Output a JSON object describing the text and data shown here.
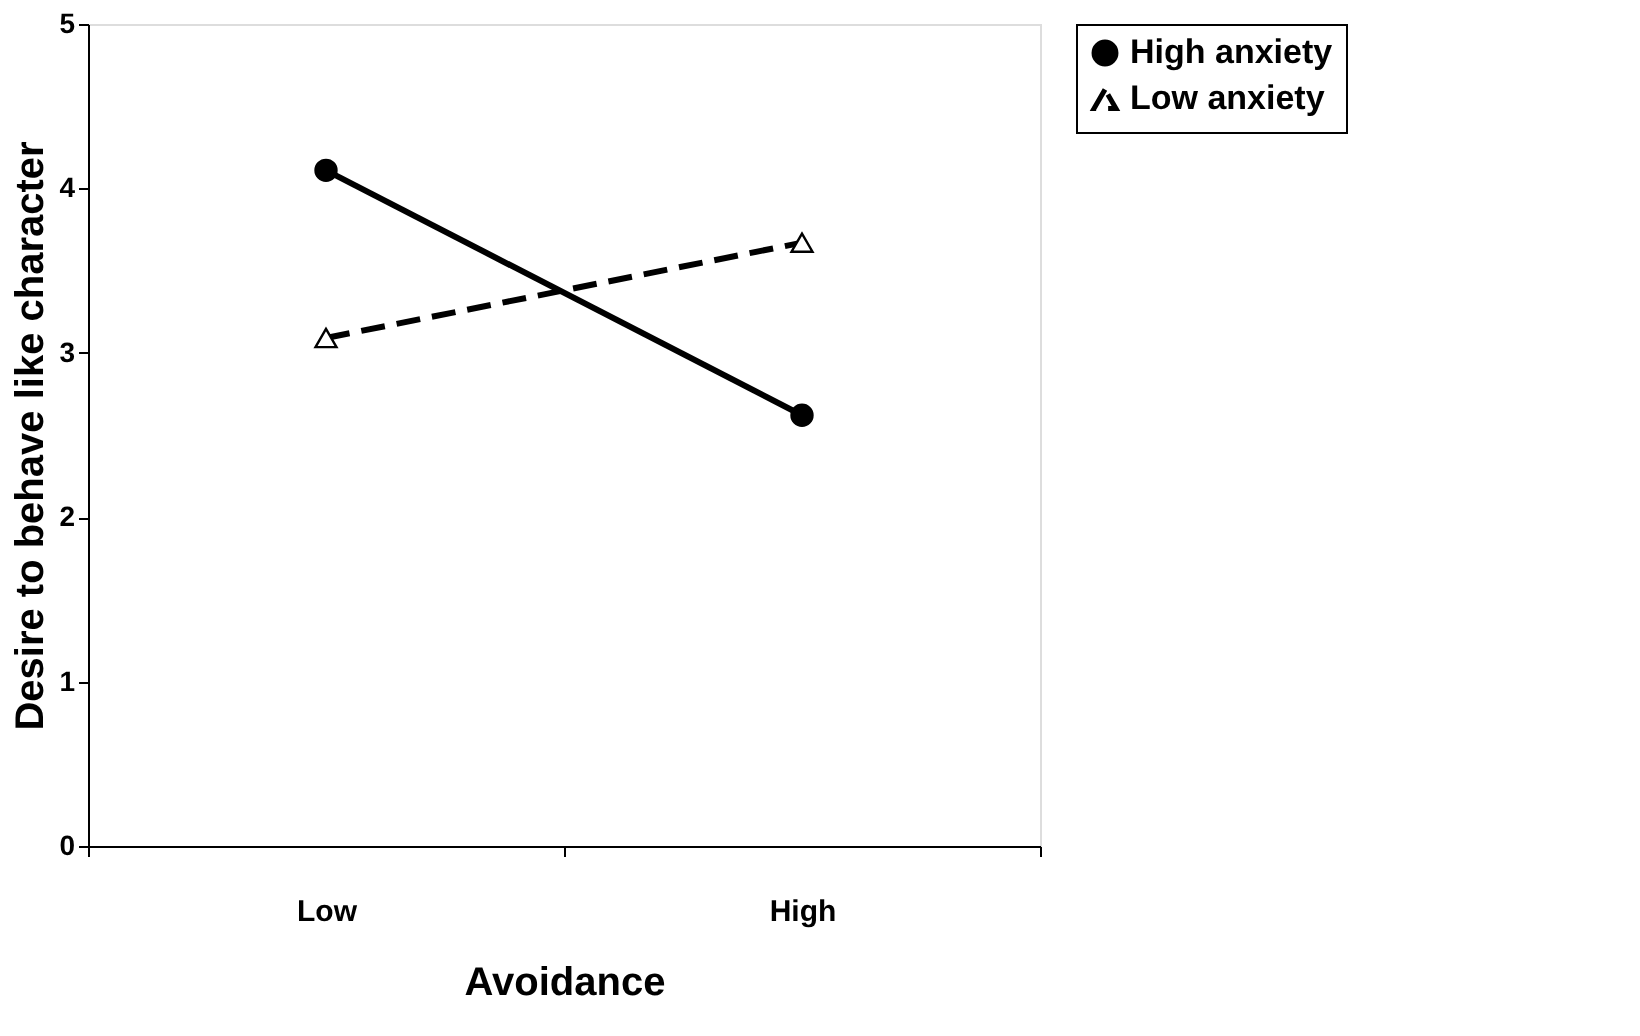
{
  "chart_data": {
    "type": "line",
    "xlabel": "Avoidance",
    "ylabel": "Desire to behave like character",
    "categories": [
      "Low",
      "High"
    ],
    "series": [
      {
        "name": "High anxiety",
        "color": "#000000",
        "values": [
          4.11,
          2.62
        ],
        "marker": "circle",
        "line_style": "solid"
      },
      {
        "name": "Low anxiety",
        "color": "#000000",
        "values": [
          3.09,
          3.67
        ],
        "marker": "triangle",
        "line_style": "dashed"
      }
    ],
    "ylim": [
      0,
      5
    ],
    "yticks": [
      0,
      1,
      2,
      3,
      4,
      5
    ],
    "grid": false,
    "legend": "right"
  }
}
